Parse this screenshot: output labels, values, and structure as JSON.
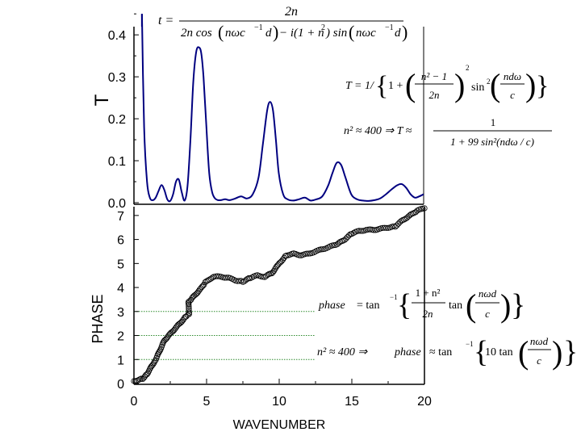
{
  "chart_data": [
    {
      "type": "line",
      "ylabel": "T",
      "xlim": [
        0,
        20
      ],
      "ylim": [
        0,
        0.46
      ],
      "yticks": [
        "0.0",
        "0.1",
        "0.2",
        "0.3",
        "0.4"
      ],
      "series": [
        {
          "name": "T",
          "color": "#000080",
          "x": [
            0.55,
            0.7,
            0.9,
            1.1,
            1.3,
            1.5,
            1.7,
            1.9,
            2.1,
            2.3,
            2.5,
            2.7,
            2.9,
            3.1,
            3.3,
            3.5,
            3.7,
            3.9,
            4.1,
            4.3,
            4.5,
            4.65,
            4.8,
            5.0,
            5.2,
            5.4,
            5.6,
            5.8,
            6.0,
            6.3,
            6.6,
            7.0,
            7.4,
            7.8,
            8.2,
            8.6,
            8.9,
            9.2,
            9.4,
            9.6,
            9.8,
            10.0,
            10.3,
            10.6,
            11.0,
            11.4,
            11.8,
            12.2,
            12.6,
            13.0,
            13.4,
            13.7,
            14.0,
            14.3,
            14.6,
            15.0,
            15.4,
            15.8,
            16.2,
            16.6,
            17.0,
            17.4,
            17.8,
            18.2,
            18.5,
            18.8,
            19.1,
            19.4,
            19.7,
            20.0
          ],
          "y": [
            0.45,
            0.18,
            0.05,
            0.012,
            0.006,
            0.012,
            0.028,
            0.042,
            0.03,
            0.008,
            0.004,
            0.02,
            0.05,
            0.055,
            0.025,
            0.005,
            0.04,
            0.15,
            0.29,
            0.36,
            0.37,
            0.355,
            0.3,
            0.18,
            0.07,
            0.025,
            0.01,
            0.006,
            0.006,
            0.008,
            0.006,
            0.01,
            0.015,
            0.01,
            0.02,
            0.06,
            0.14,
            0.22,
            0.24,
            0.22,
            0.15,
            0.07,
            0.02,
            0.008,
            0.005,
            0.008,
            0.012,
            0.005,
            0.008,
            0.015,
            0.04,
            0.07,
            0.095,
            0.09,
            0.06,
            0.02,
            0.008,
            0.005,
            0.004,
            0.006,
            0.01,
            0.02,
            0.032,
            0.042,
            0.044,
            0.035,
            0.02,
            0.012,
            0.015,
            0.02
          ]
        }
      ]
    },
    {
      "type": "scatter",
      "xlabel": "WAVENUMBER",
      "ylabel": "PHASE",
      "xlim": [
        0,
        20
      ],
      "ylim": [
        0,
        7.5
      ],
      "xticks": [
        "0",
        "5",
        "10",
        "15",
        "20"
      ],
      "yticks": [
        "0",
        "1",
        "2",
        "3",
        "4",
        "5",
        "6",
        "7"
      ],
      "guide_lines_y": [
        1,
        2,
        3
      ],
      "series": [
        {
          "name": "phase",
          "marker": "open-circle",
          "color": "#000000",
          "x": [
            0.0,
            0.3,
            0.6,
            0.9,
            1.2,
            1.5,
            1.8,
            2.1,
            2.4,
            2.7,
            3.0,
            3.3,
            3.6,
            3.8,
            3.75,
            4.0,
            4.3,
            4.6,
            4.9,
            5.2,
            5.5,
            6.0,
            6.5,
            7.0,
            7.5,
            8.0,
            8.5,
            9.0,
            9.5,
            10.0,
            10.5,
            11.0,
            11.5,
            12.0,
            12.5,
            13.0,
            13.5,
            14.0,
            14.5,
            15.0,
            15.5,
            16.0,
            16.5,
            17.0,
            17.5,
            18.0,
            18.5,
            19.0,
            19.5,
            20.0
          ],
          "y": [
            0.1,
            0.15,
            0.2,
            0.4,
            0.7,
            1.0,
            1.4,
            1.8,
            2.0,
            2.2,
            2.4,
            2.6,
            2.8,
            2.9,
            3.4,
            3.55,
            3.75,
            3.95,
            4.2,
            4.35,
            4.45,
            4.45,
            4.4,
            4.3,
            4.25,
            4.4,
            4.5,
            4.45,
            4.6,
            5.0,
            5.35,
            5.4,
            5.35,
            5.4,
            5.5,
            5.6,
            5.7,
            5.8,
            6.0,
            6.25,
            6.35,
            6.4,
            6.4,
            6.45,
            6.5,
            6.55,
            6.8,
            7.0,
            7.2,
            7.3
          ]
        }
      ]
    }
  ],
  "equations": {
    "t_num": "2n",
    "t_lhs": "t =",
    "t_den_a": "2n cos",
    "t_den_b": "nωc",
    "t_den_c": "−1",
    "t_den_d": "d",
    "t_den_e": "− i(1 + n",
    "t_den_f": "2",
    "t_den_g": ") sin",
    "t_den_h": "nωc",
    "t_den_i": "−1",
    "t_den_j": "d",
    "T_lhs": "T = 1/",
    "T_one": "1 +",
    "T_num": "n² − 1",
    "T_den": "2n",
    "T_sq": "2",
    "T_sin": "sin",
    "T_sin2": "2",
    "T_arg_num": "ndω",
    "T_arg_den": "c",
    "T2_lhs": "n² ≈ 400 ⇒ T ≈",
    "T2_num": "1",
    "T2_den": "1 + 99 sin²(ndω / c)",
    "ph_lhs": "phase",
    "ph_eq": "= tan",
    "ph_sup": "−1",
    "ph_num": "1 + n²",
    "ph_den": "2n",
    "ph_tan": "tan",
    "ph_arg_num": "nωd",
    "ph_arg_den": "c",
    "ph2_lhs": "n² ≈ 400 ⇒",
    "ph2_phase": "phase",
    "ph2_eq": "≈ tan",
    "ph2_sup": "−1",
    "ph2_ten": "10 tan",
    "ph2_arg_num": "nωd",
    "ph2_arg_den": "c"
  }
}
